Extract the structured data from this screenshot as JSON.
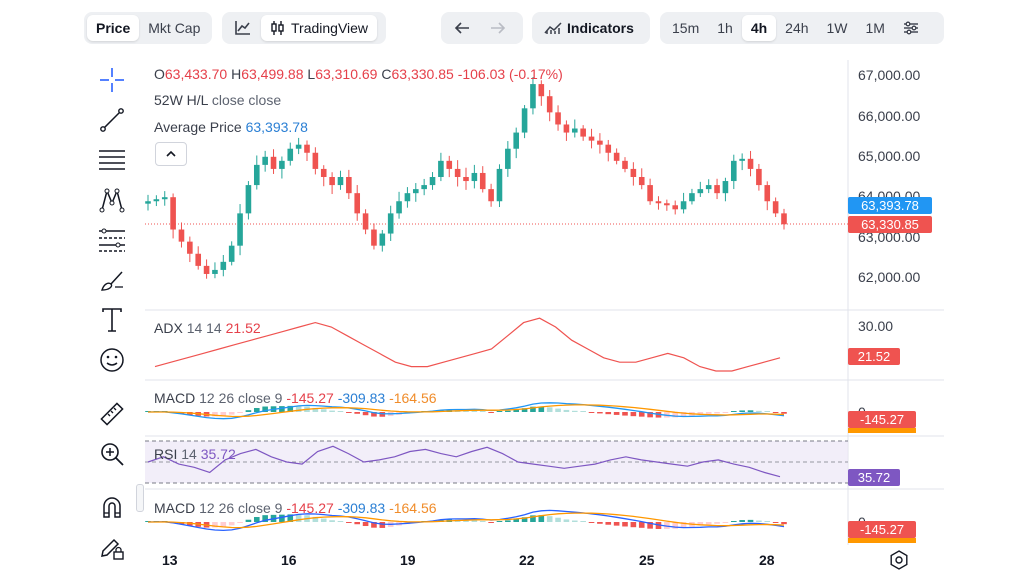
{
  "toolbar": {
    "price_tab": "Price",
    "mktcap_tab": "Mkt Cap",
    "tradingview_label": "TradingView",
    "indicators_label": "Indicators",
    "intervals": [
      "15m",
      "1h",
      "4h",
      "24h",
      "1W",
      "1M"
    ],
    "active_interval": "4h"
  },
  "legend": {
    "o_label": "O",
    "o_value": "63,433.70",
    "h_label": "H",
    "h_value": "63,499.88",
    "l_label": "L",
    "l_value": "63,310.69",
    "c_label": "C",
    "c_value": "63,330.85",
    "change": "-106.03 (-0.17%)",
    "w52_label": "52W H/L",
    "w52_value": "close close",
    "avg_label": "Average Price",
    "avg_value": "63,393.78"
  },
  "price_axis": [
    "67,000.00",
    "66,000.00",
    "65,000.00",
    "64,000.00",
    "63,000.00",
    "62,000.00"
  ],
  "price_tags": {
    "average": "63,393.78",
    "last": "63,330.85"
  },
  "adx": {
    "label": "ADX",
    "params": "14 14",
    "value": "21.52",
    "axis": "30.00",
    "tag": "21.52"
  },
  "macd1": {
    "label": "MACD",
    "params": "12 26 close 9",
    "v1": "-145.27",
    "v2": "-309.83",
    "v3": "-164.56",
    "axis": "0",
    "tag": "-145.27"
  },
  "rsi": {
    "label": "RSI",
    "params": "14",
    "value": "35.72",
    "tag": "35.72"
  },
  "macd2": {
    "label": "MACD",
    "params": "12 26 close 9",
    "v1": "-145.27",
    "v2": "-309.83",
    "v3": "-164.56",
    "axis": "0",
    "tag": "-145.27"
  },
  "dates": [
    "13",
    "16",
    "19",
    "22",
    "25",
    "28"
  ],
  "colors": {
    "up": "#26a69a",
    "down": "#ef5350",
    "adx": "#ef5350",
    "macd": "#2962ff",
    "signal": "#ff9800",
    "rsi": "#7e57c2",
    "avg_tag": "#2196f3",
    "last_tag": "#ef5350"
  },
  "chart_data": {
    "type": "candlestick",
    "interval": "4h",
    "close_series": [
      63900,
      63950,
      64000,
      63200,
      62900,
      62600,
      62300,
      62100,
      62200,
      62400,
      62800,
      63600,
      64300,
      64800,
      65000,
      64700,
      64900,
      65200,
      65300,
      65100,
      64700,
      64500,
      64300,
      64500,
      64100,
      63600,
      63200,
      62800,
      63100,
      63600,
      63900,
      64100,
      64200,
      64300,
      64500,
      64900,
      64700,
      64500,
      64400,
      64600,
      64200,
      63900,
      64700,
      65200,
      65600,
      66200,
      66800,
      66500,
      66100,
      65800,
      65600,
      65700,
      65500,
      65400,
      65300,
      65100,
      64900,
      64700,
      64500,
      64300,
      63900,
      63850,
      63800,
      63700,
      63900,
      64100,
      64200,
      64300,
      64100,
      64400,
      64900,
      64950,
      64700,
      64300,
      63900,
      63600,
      63330
    ],
    "adx_series": [
      20,
      21,
      22,
      23,
      24,
      25,
      26,
      27,
      28,
      29,
      30,
      29,
      27,
      25,
      23,
      21,
      20,
      20,
      21,
      22,
      23,
      24,
      27,
      30,
      31,
      29,
      26,
      24,
      22,
      21,
      21,
      22,
      23,
      22,
      20,
      19,
      19,
      20,
      21,
      22
    ],
    "rsi_series": [
      50,
      55,
      48,
      45,
      40,
      52,
      58,
      62,
      55,
      50,
      48,
      60,
      65,
      58,
      50,
      52,
      55,
      60,
      62,
      58,
      55,
      60,
      64,
      58,
      50,
      48,
      46,
      44,
      46,
      48,
      52,
      55,
      52,
      50,
      48,
      46,
      50,
      52,
      48,
      45,
      40,
      36
    ]
  }
}
